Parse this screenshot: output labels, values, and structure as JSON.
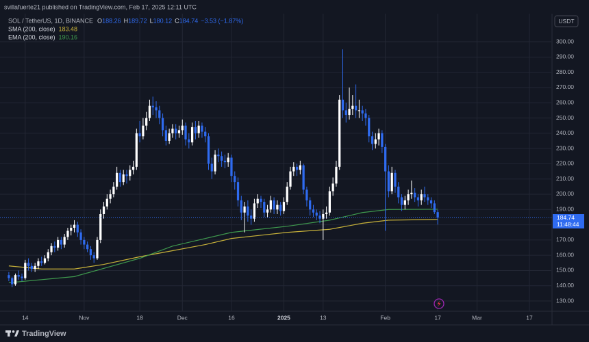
{
  "header": {
    "publisher": "svillafuerte21 published on TradingView.com, Feb 17, 2025 12:11 UTC",
    "footer": "TradingView"
  },
  "chart_data": {
    "type": "candlestick",
    "title": "SOL / TetherUS, 1D, BINANCE",
    "ohlc_legend": [
      {
        "key": "O",
        "value": 188.26
      },
      {
        "key": "H",
        "value": 189.72
      },
      {
        "key": "L",
        "value": 180.12
      },
      {
        "key": "C",
        "value": 184.74
      }
    ],
    "change": "−3.53 (−1.87%)",
    "currency": "USDT",
    "up_color": "#ffffff",
    "down_color": "#2f6bf0",
    "x": [
      0,
      1,
      2,
      3,
      4,
      5,
      6,
      7,
      8,
      9,
      10,
      11,
      12,
      13,
      14,
      15,
      16,
      17,
      18,
      19,
      20,
      21,
      22,
      23,
      24,
      25,
      26,
      27,
      28,
      29,
      30,
      31,
      32,
      33,
      34,
      35,
      36,
      37,
      38,
      39,
      40,
      41,
      42,
      43,
      44,
      45,
      46,
      47,
      48,
      49,
      50,
      51,
      52,
      53,
      54,
      55,
      56,
      57,
      58,
      59,
      60,
      61,
      62,
      63,
      64,
      65,
      66,
      67,
      68,
      69,
      70,
      71,
      72,
      73,
      74,
      75,
      76,
      77,
      78,
      79,
      80,
      81,
      82,
      83,
      84,
      85,
      86,
      87,
      88,
      89,
      90,
      91,
      92,
      93,
      94,
      95,
      96,
      97,
      98,
      99,
      100,
      101,
      102,
      103,
      104,
      105,
      106,
      107,
      108,
      109,
      110,
      111,
      112,
      113,
      114,
      115,
      116,
      117,
      118,
      119,
      120,
      121,
      122,
      123,
      124,
      125,
      126,
      127,
      128,
      129,
      130,
      131
    ],
    "open": [
      147,
      145,
      141,
      147,
      146,
      145,
      155,
      153,
      151,
      153,
      156,
      155,
      158,
      162,
      166,
      165,
      170,
      167,
      172,
      176,
      178,
      180,
      175,
      170,
      167,
      164,
      160,
      158,
      170,
      187,
      192,
      197,
      200,
      205,
      214,
      208,
      213,
      212,
      216,
      218,
      240,
      238,
      245,
      250,
      258,
      257,
      255,
      250,
      242,
      235,
      240,
      243,
      240,
      242,
      245,
      236,
      234,
      244,
      240,
      245,
      241,
      238,
      220,
      215,
      226,
      225,
      222,
      221,
      224,
      212,
      208,
      196,
      188,
      192,
      186,
      184,
      194,
      197,
      195,
      188,
      190,
      196,
      190,
      193,
      189,
      195,
      205,
      215,
      218,
      216,
      219,
      203,
      196,
      190,
      188,
      186,
      184,
      187,
      188,
      202,
      207,
      218,
      262,
      255,
      252,
      256,
      258,
      255,
      255,
      253,
      250,
      238,
      233,
      236,
      240,
      231,
      215,
      202,
      214,
      205,
      198,
      193,
      196,
      200,
      201,
      198,
      196,
      200,
      198,
      196,
      194,
      188.26
    ],
    "high": [
      149,
      146,
      148,
      150,
      148,
      157,
      158,
      155,
      155,
      158,
      159,
      160,
      164,
      168,
      169,
      172,
      172,
      174,
      178,
      180,
      183,
      182,
      177,
      172,
      169,
      166,
      162,
      172,
      190,
      195,
      200,
      203,
      208,
      218,
      216,
      216,
      216,
      219,
      222,
      243,
      248,
      250,
      254,
      262,
      264,
      261,
      258,
      253,
      245,
      243,
      246,
      246,
      245,
      249,
      247,
      240,
      247,
      248,
      248,
      247,
      244,
      240,
      224,
      229,
      230,
      228,
      226,
      227,
      226,
      215,
      211,
      199,
      195,
      196,
      190,
      197,
      200,
      199,
      197,
      193,
      199,
      198,
      196,
      195,
      198,
      208,
      218,
      221,
      220,
      222,
      220,
      205,
      198,
      193,
      190,
      189,
      190,
      192,
      205,
      211,
      222,
      265,
      295,
      260,
      270,
      265,
      272,
      262,
      258,
      256,
      252,
      241,
      240,
      243,
      242,
      233,
      219,
      218,
      216,
      208,
      200,
      199,
      203,
      209,
      204,
      200,
      203,
      205,
      200,
      198,
      196,
      189.72
    ],
    "low": [
      143,
      139,
      140,
      144,
      143,
      144,
      150,
      149,
      149,
      151,
      153,
      154,
      156,
      160,
      162,
      163,
      164,
      165,
      170,
      173,
      175,
      172,
      167,
      164,
      162,
      157,
      155,
      157,
      168,
      184,
      190,
      194,
      198,
      203,
      205,
      206,
      207,
      209,
      213,
      216,
      234,
      236,
      242,
      248,
      252,
      250,
      246,
      238,
      232,
      233,
      237,
      236,
      237,
      239,
      232,
      230,
      232,
      236,
      237,
      237,
      234,
      216,
      210,
      213,
      221,
      218,
      217,
      218,
      208,
      203,
      192,
      183,
      175,
      182,
      180,
      182,
      191,
      191,
      185,
      185,
      188,
      187,
      187,
      186,
      187,
      193,
      203,
      212,
      212,
      213,
      200,
      192,
      186,
      185,
      183,
      181,
      170,
      184,
      186,
      199,
      205,
      216,
      250,
      247,
      249,
      252,
      250,
      250,
      248,
      245,
      234,
      229,
      230,
      232,
      227,
      176,
      198,
      200,
      201,
      194,
      189,
      190,
      193,
      197,
      195,
      192,
      193,
      195,
      193,
      191,
      187,
      180.12
    ],
    "close": [
      145,
      141,
      147,
      146,
      145,
      155,
      153,
      151,
      153,
      156,
      155,
      158,
      162,
      166,
      165,
      170,
      167,
      172,
      176,
      178,
      180,
      175,
      170,
      167,
      164,
      160,
      158,
      170,
      187,
      192,
      197,
      200,
      205,
      214,
      208,
      213,
      212,
      216,
      218,
      240,
      238,
      245,
      250,
      258,
      257,
      255,
      250,
      242,
      235,
      240,
      243,
      240,
      242,
      245,
      236,
      234,
      244,
      240,
      245,
      241,
      238,
      220,
      215,
      226,
      225,
      222,
      221,
      224,
      212,
      208,
      196,
      188,
      192,
      186,
      184,
      194,
      197,
      195,
      188,
      190,
      196,
      190,
      193,
      189,
      195,
      205,
      215,
      218,
      216,
      219,
      203,
      196,
      190,
      188,
      186,
      184,
      187,
      188,
      202,
      207,
      218,
      262,
      255,
      252,
      256,
      258,
      255,
      255,
      253,
      250,
      238,
      233,
      236,
      240,
      231,
      215,
      202,
      214,
      205,
      198,
      193,
      196,
      200,
      201,
      198,
      196,
      200,
      198,
      196,
      194,
      188.26,
      184.74
    ],
    "indicators": [
      {
        "name": "SMA (200, close)",
        "color": "#c9b33a",
        "x": [
          0,
          10,
          20,
          29,
          40,
          50,
          60,
          68,
          85,
          98,
          108,
          116,
          131
        ],
        "values": [
          153,
          151,
          151,
          154,
          159,
          163,
          167,
          171,
          175,
          177,
          181,
          183,
          183.48
        ]
      },
      {
        "name": "EMA (200, close)",
        "color": "#3f9a4e",
        "x": [
          0,
          20,
          40,
          50,
          68,
          85,
          98,
          108,
          116,
          131
        ],
        "values": [
          142,
          146,
          158,
          166,
          175,
          179,
          183,
          188,
          190,
          190.16
        ]
      }
    ],
    "last_price": 184.74,
    "countdown": "11:48:44",
    "xlim": [
      -2.7,
      165.7
    ],
    "xticks": [
      {
        "value": 5,
        "label": "14"
      },
      {
        "value": 23,
        "label": "Nov"
      },
      {
        "value": 40,
        "label": "18"
      },
      {
        "value": 53,
        "label": "Dec"
      },
      {
        "value": 68,
        "label": "16"
      },
      {
        "value": 84,
        "label": "2025"
      },
      {
        "value": 96,
        "label": "13"
      },
      {
        "value": 115,
        "label": "Feb"
      },
      {
        "value": 131,
        "label": "17"
      },
      {
        "value": 143,
        "label": "Mar"
      },
      {
        "value": 159,
        "label": "17"
      }
    ],
    "ylim": [
      123.3,
      318.4
    ],
    "yticks": [
      {
        "value": 130,
        "label": "130.00"
      },
      {
        "value": 140,
        "label": "140.00"
      },
      {
        "value": 150,
        "label": "150.00"
      },
      {
        "value": 160,
        "label": "160.00"
      },
      {
        "value": 170,
        "label": "170.00"
      },
      {
        "value": 180,
        "label": "180.00"
      },
      {
        "value": 190,
        "label": "190.00"
      },
      {
        "value": 200,
        "label": "200.00"
      },
      {
        "value": 210,
        "label": "210.00"
      },
      {
        "value": 220,
        "label": "220.00"
      },
      {
        "value": 230,
        "label": "230.00"
      },
      {
        "value": 240,
        "label": "240.00"
      },
      {
        "value": 250,
        "label": "250.00"
      },
      {
        "value": 260,
        "label": "260.00"
      },
      {
        "value": 270,
        "label": "270.00"
      },
      {
        "value": 280,
        "label": "280.00"
      },
      {
        "value": 290,
        "label": "290.00"
      },
      {
        "value": 300,
        "label": "300.00"
      }
    ],
    "grid": true
  }
}
